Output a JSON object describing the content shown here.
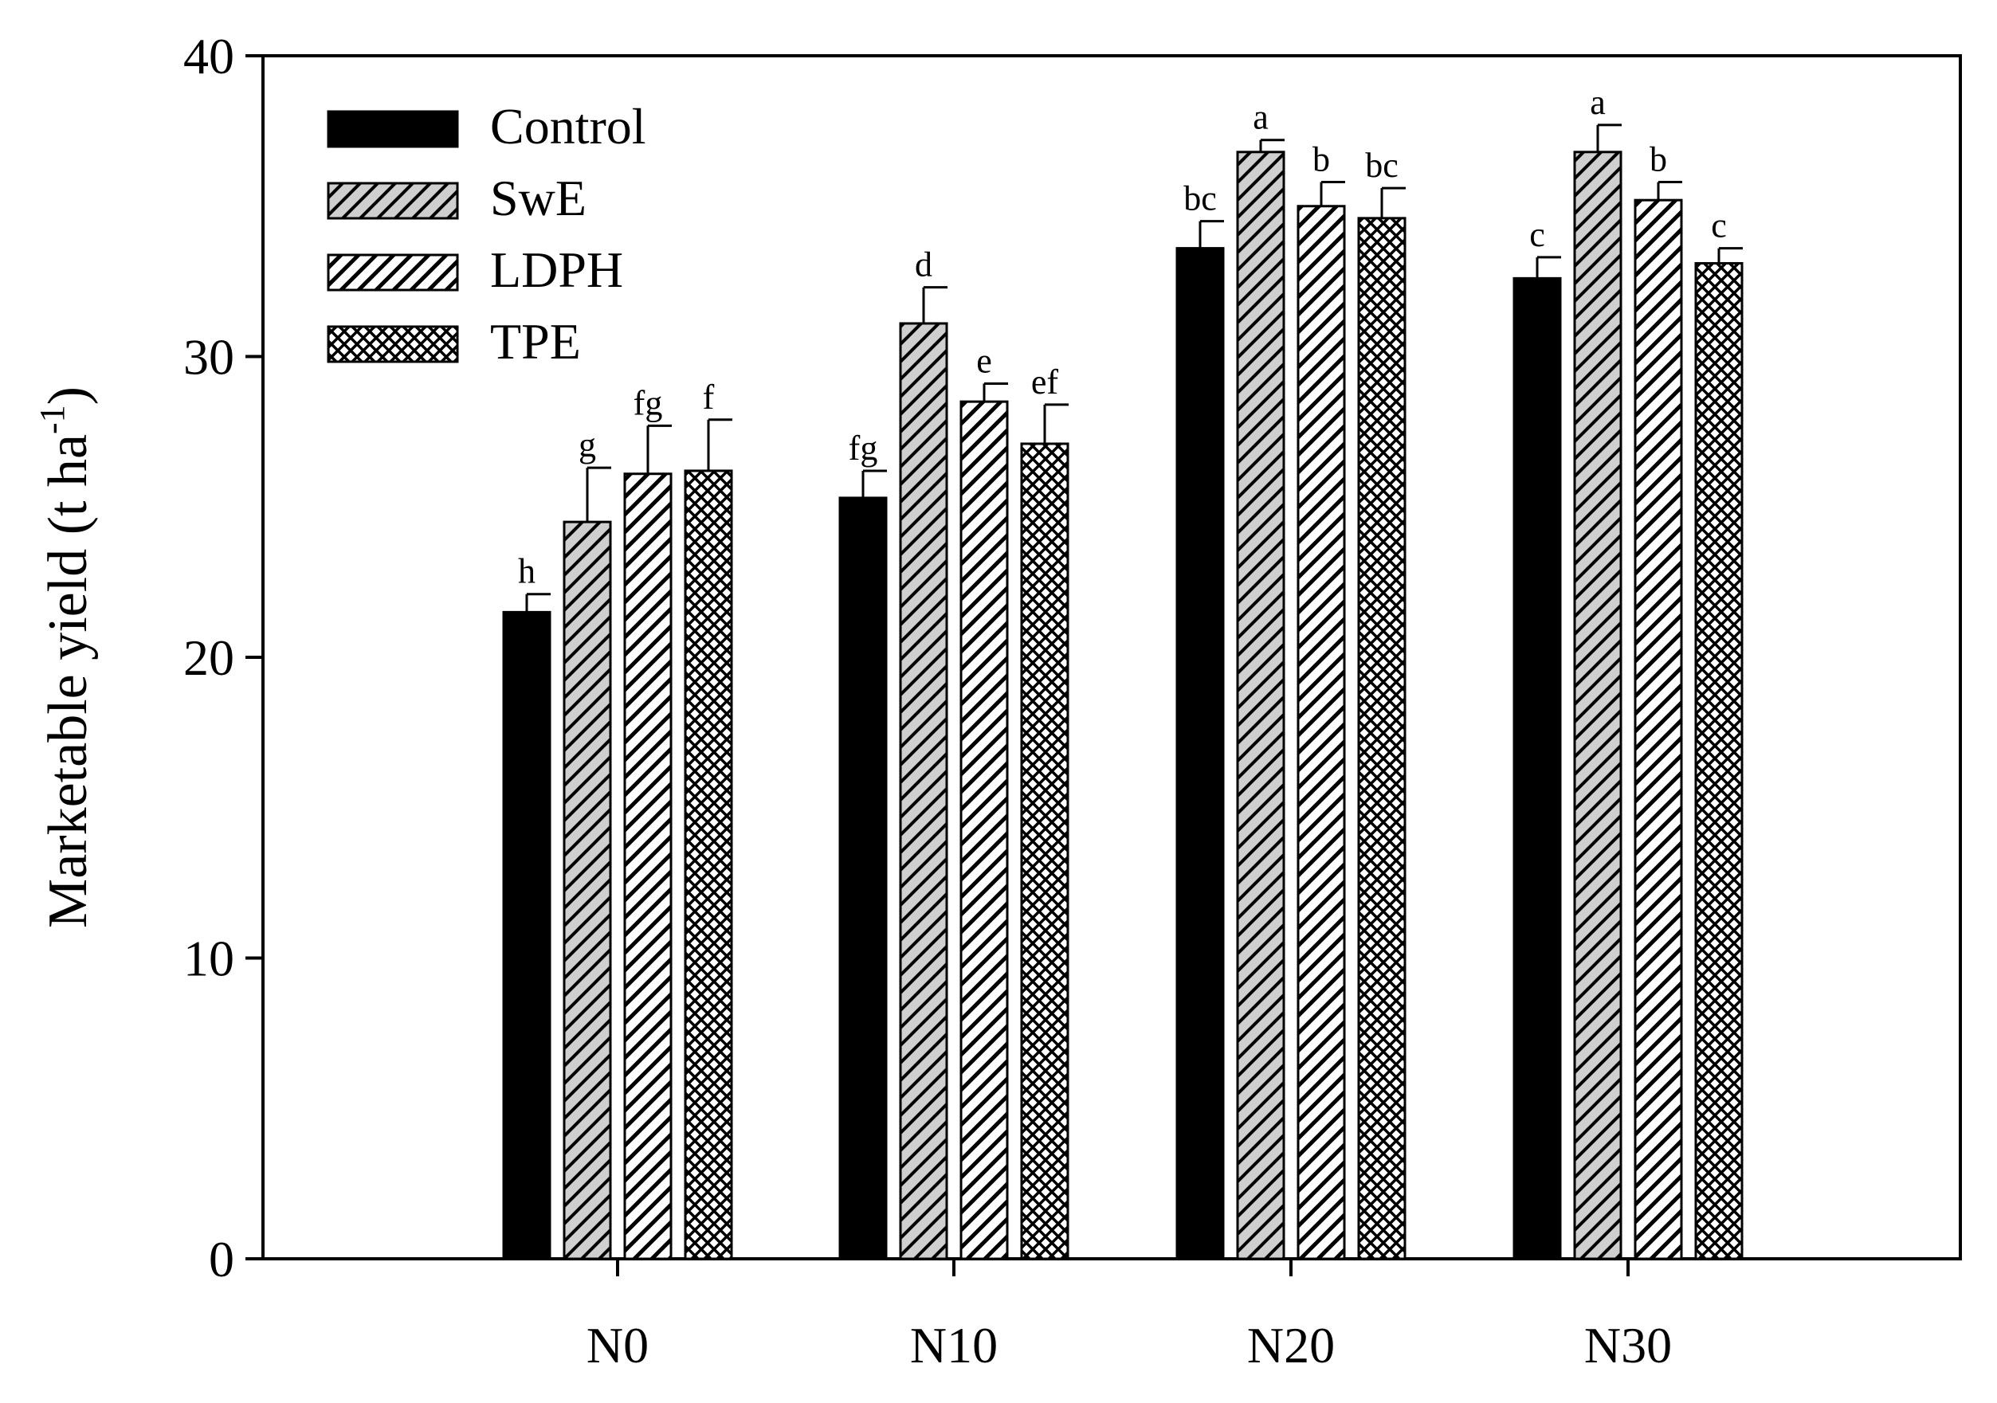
{
  "chart_data": {
    "type": "bar",
    "title": "",
    "xlabel": "",
    "ylabel": "Marketable yield (t ha",
    "ylabel_superscript": "-1",
    "ylabel_suffix": ")",
    "ylim": [
      0,
      40
    ],
    "yticks": [
      "0",
      "10",
      "20",
      "30",
      "40"
    ],
    "categories": [
      "N0",
      "N10",
      "N20",
      "N30"
    ],
    "legend_position": "top-left",
    "series": [
      {
        "name": "Control",
        "fill": "solid",
        "color": "#000000",
        "values": [
          21.5,
          25.3,
          33.6,
          32.6
        ],
        "errors": [
          0.6,
          0.9,
          0.9,
          0.7
        ],
        "letters": [
          "h",
          "fg",
          "bc",
          "c"
        ]
      },
      {
        "name": "SwE",
        "fill": "hatch-gray",
        "color": "#cccccc",
        "values": [
          24.5,
          31.1,
          36.8,
          36.8
        ],
        "errors": [
          1.8,
          1.2,
          0.4,
          0.9
        ],
        "letters": [
          "g",
          "d",
          "a",
          "a"
        ]
      },
      {
        "name": "LDPH",
        "fill": "hatch-white",
        "color": "#ffffff",
        "values": [
          26.1,
          28.5,
          35.0,
          35.2
        ],
        "errors": [
          1.6,
          0.6,
          0.8,
          0.6
        ],
        "letters": [
          "fg",
          "e",
          "b",
          "b"
        ]
      },
      {
        "name": "TPE",
        "fill": "crosshatch",
        "color": "#ffffff",
        "values": [
          26.2,
          27.1,
          34.6,
          33.1
        ],
        "errors": [
          1.7,
          1.3,
          1.0,
          0.5
        ],
        "letters": [
          "f",
          "ef",
          "bc",
          "c"
        ]
      }
    ]
  }
}
